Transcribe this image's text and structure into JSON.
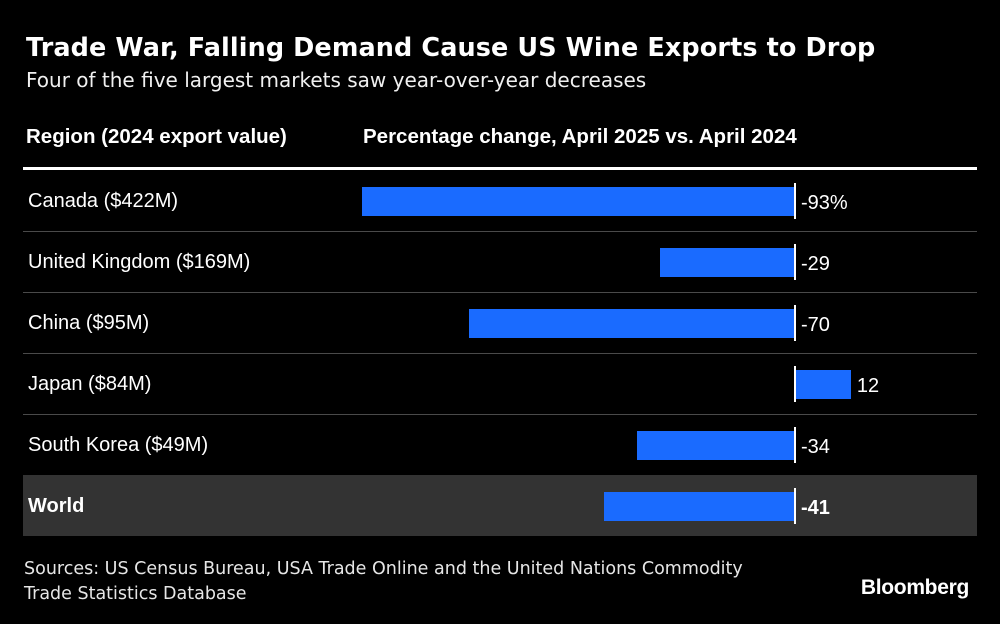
{
  "chart_data": {
    "type": "bar",
    "orientation": "horizontal",
    "title": "Trade War, Falling Demand Cause US Wine Exports to Drop",
    "subtitle": "Four of the five largest markets saw year-over-year decreases",
    "column_headers": {
      "region": "Region (2024 export value)",
      "change": "Percentage change, April 2025 vs. April 2024"
    },
    "categories": [
      "Canada ($422M)",
      "United Kingdom ($169M)",
      "China ($95M)",
      "Japan ($84M)",
      "South Korea ($49M)",
      "World"
    ],
    "values": [
      -93,
      -29,
      -70,
      12,
      -34,
      -41
    ],
    "value_labels": [
      "-93%",
      "-29",
      "-70",
      "12",
      "-34",
      "-41"
    ],
    "highlighted_category": "World",
    "bar_color": "#1a6bff",
    "highlight_row_color": "#333333",
    "background_color": "#000000",
    "source": "Sources: US Census Bureau, USA Trade Online and the United Nations Commodity Trade Statistics Database",
    "brand": "Bloomberg"
  }
}
